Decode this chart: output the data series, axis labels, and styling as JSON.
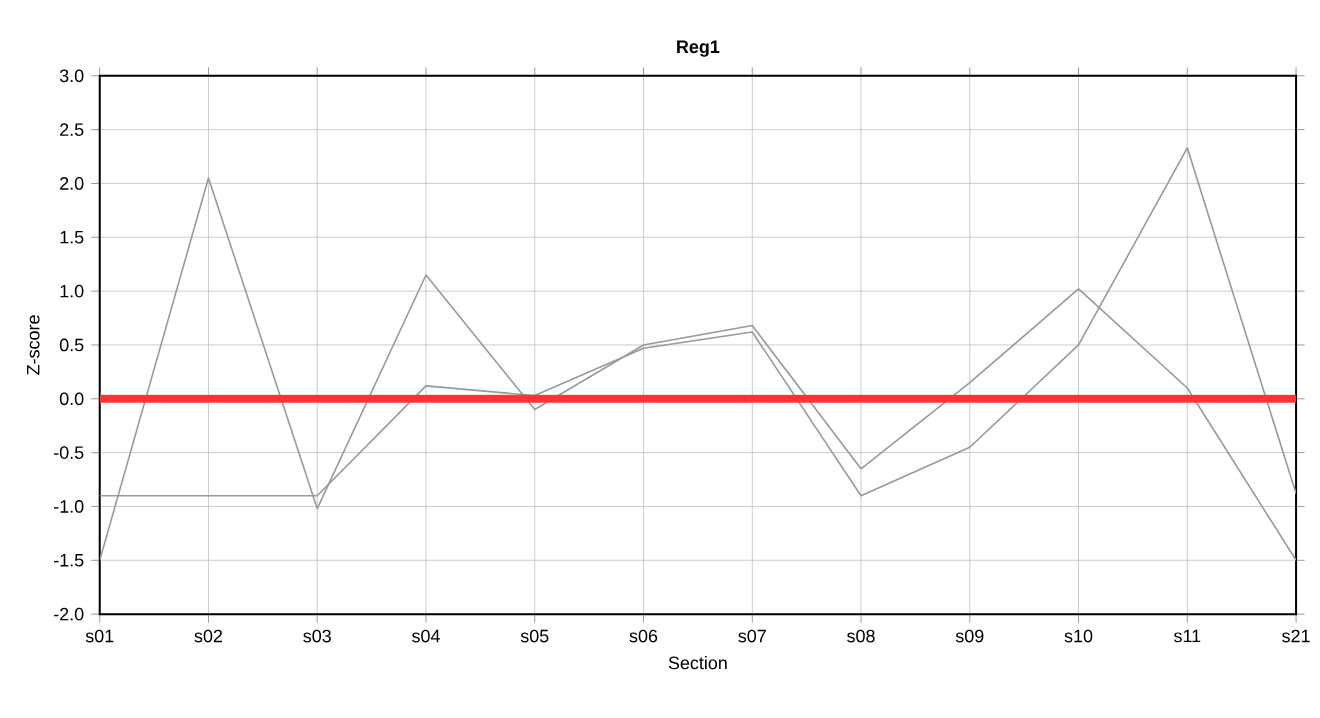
{
  "chart_data": {
    "type": "line",
    "title": "Reg1",
    "xlabel": "Section",
    "ylabel": "Z-score",
    "categories": [
      "s01",
      "s02",
      "s03",
      "s04",
      "s05",
      "s06",
      "s07",
      "s08",
      "s09",
      "s10",
      "s11",
      "s21"
    ],
    "series": [
      {
        "color": "#999999",
        "values": [
          -1.5,
          2.05,
          -1.02,
          1.15,
          -0.1,
          0.5,
          0.68,
          -0.65,
          0.15,
          1.02,
          0.1,
          -1.5
        ]
      },
      {
        "color": "#999999",
        "values": [
          -0.9,
          -0.9,
          -0.9,
          0.12,
          0.03,
          0.47,
          0.62,
          -0.9,
          -0.45,
          0.5,
          2.33,
          -0.88
        ]
      }
    ],
    "ylim": [
      -2,
      3
    ],
    "yticks": [
      {
        "value": -2,
        "label": "-2.0"
      },
      {
        "value": -1.5,
        "label": "-1.5"
      },
      {
        "value": -1,
        "label": "-1.0"
      },
      {
        "value": -0.5,
        "label": "-0.5"
      },
      {
        "value": 0,
        "label": "0.0"
      },
      {
        "value": 0.5,
        "label": "0.5"
      },
      {
        "value": 1,
        "label": "1.0"
      },
      {
        "value": 1.5,
        "label": "1.5"
      },
      {
        "value": 2,
        "label": "2.0"
      },
      {
        "value": 2.5,
        "label": "2.5"
      },
      {
        "value": 3,
        "label": "3.0"
      }
    ],
    "ref_lines": [
      {
        "axis": "y",
        "value": 0,
        "color": "#ff3333",
        "line_style": "solid"
      }
    ],
    "grid": true,
    "marker": "none",
    "line_style": "solid"
  }
}
